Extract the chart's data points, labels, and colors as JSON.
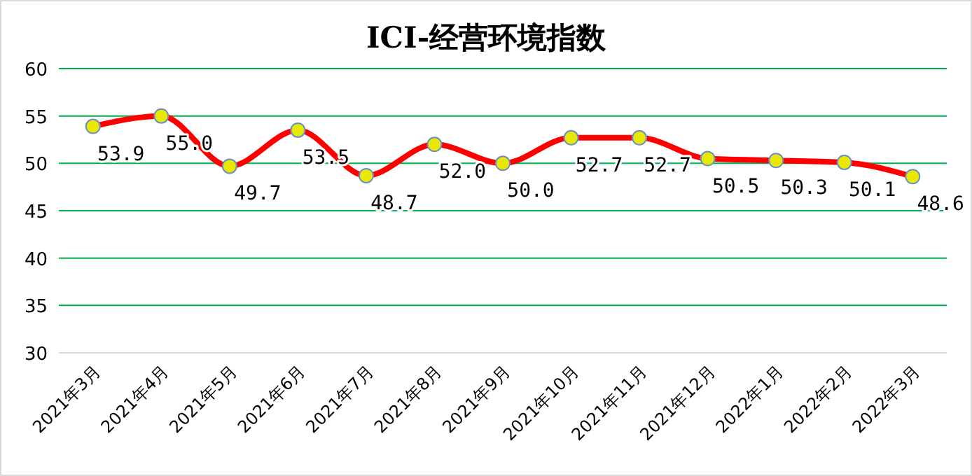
{
  "chart_data": {
    "type": "line",
    "title": "ICI-经营环境指数",
    "categories": [
      "2021年3月",
      "2021年4月",
      "2021年5月",
      "2021年6月",
      "2021年7月",
      "2021年8月",
      "2021年9月",
      "2021年10月",
      "2021年11月",
      "2021年12月",
      "2022年1月",
      "2022年2月",
      "2022年3月"
    ],
    "series": [
      {
        "color": "#ff0000",
        "values": [
          53.9,
          55.0,
          49.7,
          53.5,
          48.7,
          52.0,
          50.0,
          52.7,
          52.7,
          50.5,
          50.3,
          50.1,
          48.6
        ],
        "value_labels": [
          "53.9",
          "55.0",
          "49.7",
          "53.5",
          "48.7",
          "52.0",
          "50.0",
          "52.7",
          "52.7",
          "50.5",
          "50.3",
          "50.1",
          "48.6"
        ]
      }
    ],
    "ylim": [
      30,
      60
    ],
    "yticks": [
      30,
      35,
      40,
      45,
      50,
      55,
      60
    ],
    "grid": "y",
    "marker": "circle",
    "line_style": "solid"
  }
}
